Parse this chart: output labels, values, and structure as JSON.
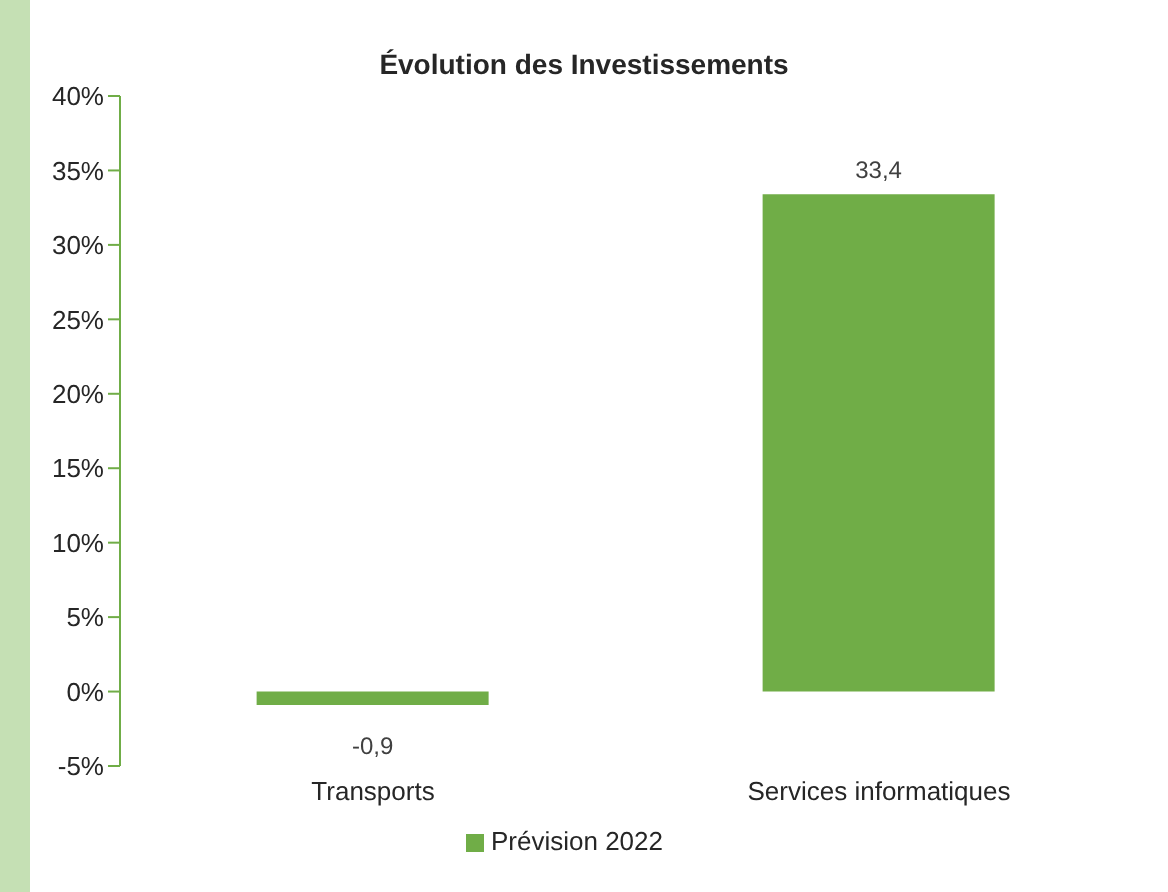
{
  "chart_data": {
    "type": "bar",
    "title": "Évolution des Investissements",
    "categories": [
      "Transports",
      "Services informatiques"
    ],
    "series": [
      {
        "name": "Prévision 2022",
        "color": "#70ad47",
        "values": [
          -0.9,
          33.4
        ],
        "value_labels": [
          "-0,9",
          "33,4"
        ]
      }
    ],
    "ylim": [
      -5,
      40
    ],
    "yticks": [
      {
        "value": -5,
        "label": "-5%"
      },
      {
        "value": 0,
        "label": "0%"
      },
      {
        "value": 5,
        "label": "5%"
      },
      {
        "value": 10,
        "label": "10%"
      },
      {
        "value": 15,
        "label": "15%"
      },
      {
        "value": 20,
        "label": "20%"
      },
      {
        "value": 25,
        "label": "25%"
      },
      {
        "value": 30,
        "label": "30%"
      },
      {
        "value": 35,
        "label": "35%"
      },
      {
        "value": 40,
        "label": "40%"
      }
    ],
    "grid": false,
    "legend": "bottom"
  }
}
